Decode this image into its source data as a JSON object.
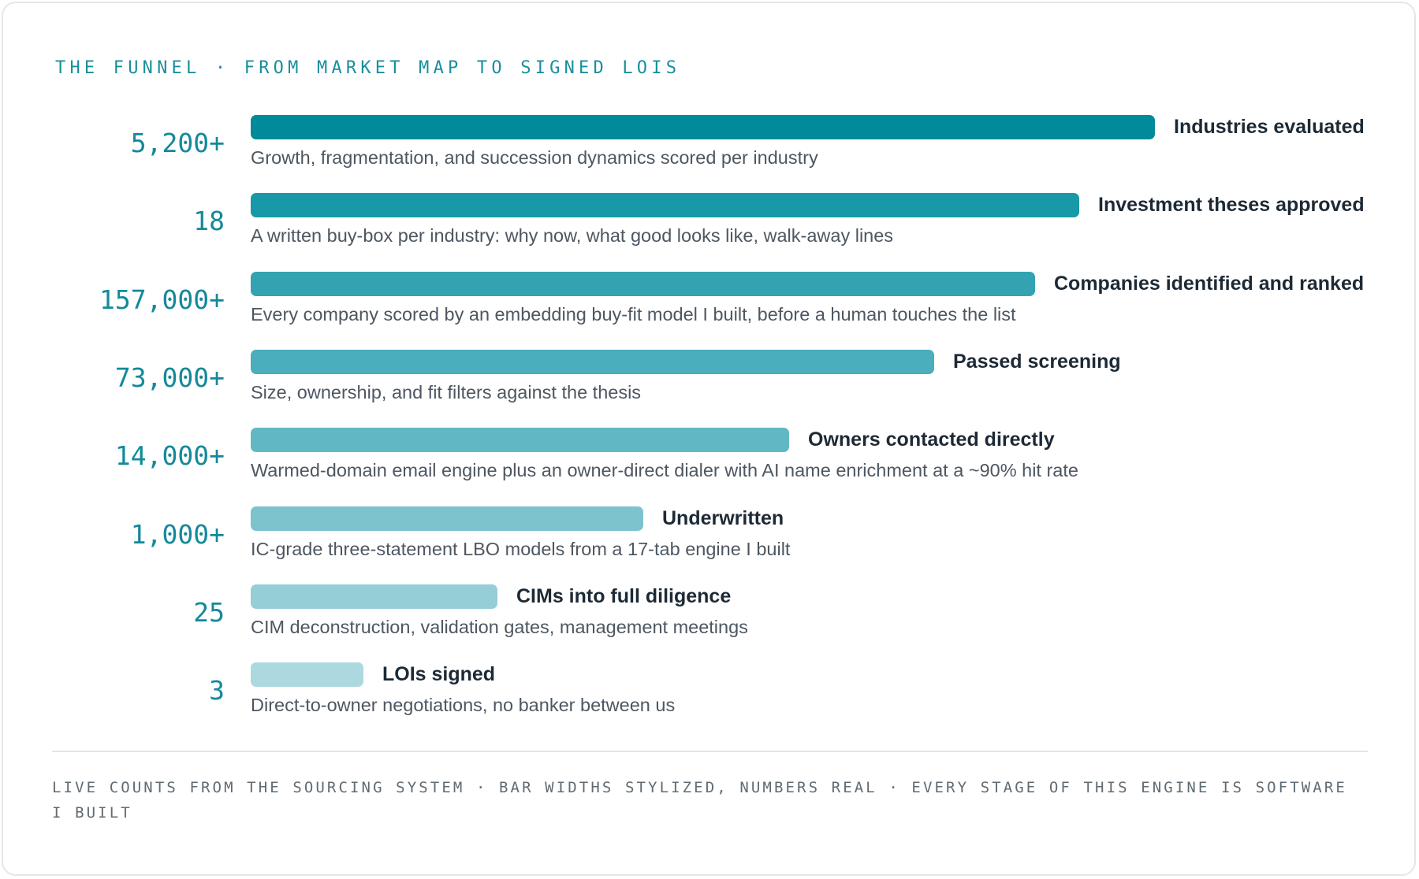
{
  "header": {
    "title": "THE FUNNEL · FROM MARKET MAP TO SIGNED LOIS"
  },
  "footer": {
    "note": "LIVE COUNTS FROM THE SOURCING SYSTEM · BAR WIDTHS STYLIZED, NUMBERS REAL · EVERY STAGE OF THIS ENGINE IS SOFTWARE I BUILT"
  },
  "chart_data": {
    "type": "bar",
    "orientation": "horizontal",
    "title": "THE FUNNEL · FROM MARKET MAP TO SIGNED LOIS",
    "grid": false,
    "legend": "none",
    "categories": [
      "Industries evaluated",
      "Investment theses approved",
      "Companies identified and ranked",
      "Passed screening",
      "Owners contacted directly",
      "Underwritten",
      "CIMs into full diligence",
      "LOIs signed"
    ],
    "stages": [
      {
        "value_label": "5,200+",
        "value": 5200,
        "label": "Industries evaluated",
        "description": "Growth, fragmentation, and succession dynamics scored per industry",
        "bar_fraction": 0.8575,
        "color": "#008a9a"
      },
      {
        "value_label": "18",
        "value": 18,
        "label": "Investment theses approved",
        "description": "A written buy-box per industry: why now, what good looks like, walk-away lines",
        "bar_fraction": 0.7853,
        "color": "#1899a7"
      },
      {
        "value_label": "157,000+",
        "value": 157000,
        "label": "Companies identified and ranked",
        "description": "Every company scored by an embedding buy-fit model I built, before a human touches the list",
        "bar_fraction": 0.7436,
        "color": "#33a3b2"
      },
      {
        "value_label": "73,000+",
        "value": 73000,
        "label": "Passed screening",
        "description": "Size, ownership, and fit filters against the thesis",
        "bar_fraction": 0.6481,
        "color": "#4aaebd"
      },
      {
        "value_label": "14,000+",
        "value": 14000,
        "label": "Owners contacted directly",
        "description": "Warmed-domain email engine plus an owner-direct dialer with AI name enrichment at a ~90% hit rate",
        "bar_fraction": 0.5103,
        "color": "#62b7c4"
      },
      {
        "value_label": "1,000+",
        "value": 1000,
        "label": "Underwritten",
        "description": "IC-grade three-statement LBO models from a 17-tab engine I built",
        "bar_fraction": 0.3723,
        "color": "#7dc3cd"
      },
      {
        "value_label": "25",
        "value": 25,
        "label": "CIMs into full diligence",
        "description": "CIM deconstruction, validation gates, management meetings",
        "bar_fraction": 0.2342,
        "color": "#95ced7"
      },
      {
        "value_label": "3",
        "value": 3,
        "label": "LOIs signed",
        "description": "Direct-to-owner negotiations, no banker between us",
        "bar_fraction": 0.1068,
        "color": "#acd9df"
      }
    ]
  }
}
